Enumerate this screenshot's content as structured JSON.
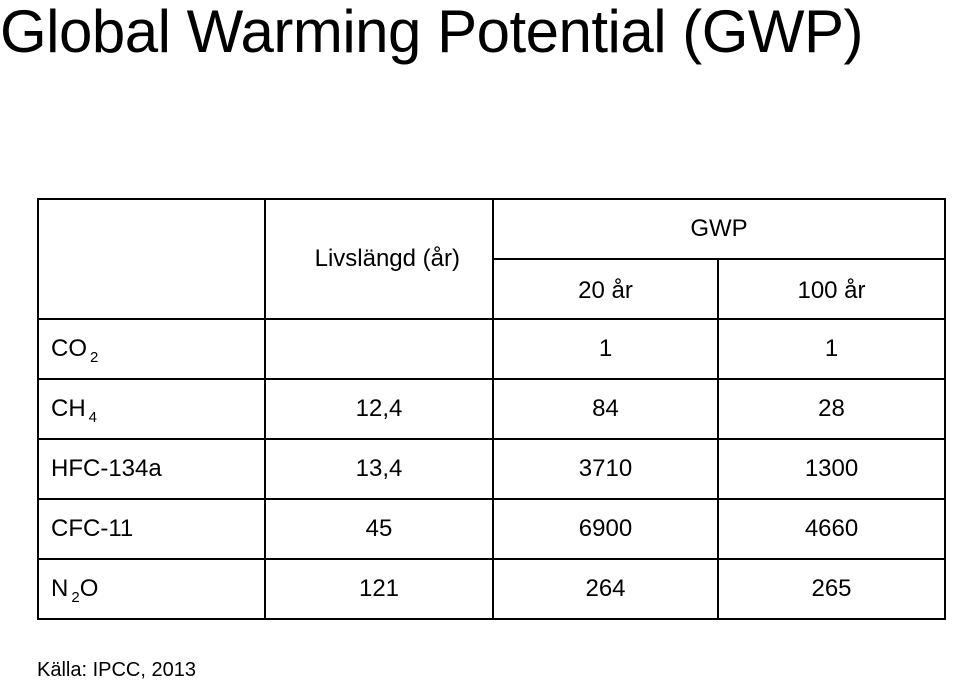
{
  "title": "Global Warming Potential (GWP)",
  "table": {
    "header": {
      "lifetime": "Livslängd (år)",
      "gwp": "GWP",
      "gwp20": "20 år",
      "gwp100": "100 år"
    },
    "rows": [
      {
        "name": "CO",
        "sub": "2",
        "after": "",
        "lifetime": "",
        "gwp20": "1",
        "gwp100": "1"
      },
      {
        "name": "CH",
        "sub": "4",
        "after": "",
        "lifetime": "12,4",
        "gwp20": "84",
        "gwp100": "28"
      },
      {
        "name": "HFC-134a",
        "sub": "",
        "after": "",
        "lifetime": "13,4",
        "gwp20": "3710",
        "gwp100": "1300"
      },
      {
        "name": "CFC-11",
        "sub": "",
        "after": "",
        "lifetime": "45",
        "gwp20": "6900",
        "gwp100": "4660"
      },
      {
        "name": "N",
        "sub": "2",
        "after": "O",
        "lifetime": "121",
        "gwp20": "264",
        "gwp100": "265"
      }
    ]
  },
  "source": "Källa: IPCC, 2013"
}
